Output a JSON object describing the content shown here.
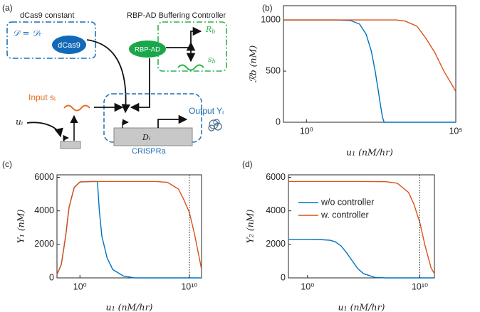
{
  "diagram": {
    "panel_label": "(a)",
    "dcas9_title": "dCas9 constant",
    "dcas9_eq": "𝒟 = 𝒟ₜ",
    "dcas9": "dCas9",
    "controller_title": "RBP-AD Buffering Controller",
    "rbp_ad": "RBP-AD",
    "rb": {
      "main": "R",
      "sub": "b"
    },
    "sb": {
      "main": "s",
      "sub": "b"
    },
    "input": "Input sᵢ",
    "u": "uᵢ",
    "gene": "Dᵢ",
    "output": "Output Yᵢ",
    "crispra": "CRISPRa"
  },
  "chart_data": [
    {
      "type": "line",
      "panel_label": "(b)",
      "xlabel": "u₁ (nM/hr)",
      "ylabel": "ℛb (nM)",
      "xscale": "log",
      "xlim": [
        0.17,
        100000
      ],
      "ylim": [
        0,
        1140
      ],
      "xticks": [
        {
          "value": 1,
          "label": "10⁰"
        },
        {
          "value": 100000,
          "label": "10⁵"
        }
      ],
      "yticks": [
        0,
        500,
        1000
      ],
      "series": [
        {
          "color": "#0072BD",
          "x": [
            0.17,
            1,
            10,
            30,
            60,
            100,
            150,
            200,
            250,
            300,
            350,
            400,
            1000,
            100000
          ],
          "values": [
            1000,
            1000,
            1000,
            995,
            960,
            860,
            690,
            500,
            320,
            170,
            50,
            0,
            0,
            0
          ]
        },
        {
          "color": "#D95319",
          "x": [
            0.17,
            1,
            100,
            1000,
            2000,
            5000,
            10000,
            20000,
            40000,
            70000,
            100000
          ],
          "values": [
            1000,
            1000,
            1000,
            1000,
            990,
            940,
            820,
            680,
            500,
            380,
            300
          ]
        }
      ]
    },
    {
      "type": "line",
      "panel_label": "(c)",
      "xlabel": "u₁ (nM/hr)",
      "ylabel": "Y₁ (nM)",
      "xscale": "log",
      "xlim": [
        0.008,
        130000000000
      ],
      "ylim": [
        0,
        6150
      ],
      "xticks": [
        {
          "value": 1,
          "label": "10⁰"
        },
        {
          "value": 10000000000,
          "label": "10¹⁰"
        }
      ],
      "yticks": [
        0,
        2000,
        4000,
        6000
      ],
      "vline": 10000000000,
      "series": [
        {
          "color": "#0072BD",
          "x": [
            0.008,
            0.02,
            0.05,
            0.1,
            0.3,
            1,
            10,
            40,
            60,
            100,
            300,
            1000,
            10000,
            100000,
            130000000000
          ],
          "values": [
            200,
            800,
            2500,
            4200,
            5400,
            5720,
            5750,
            5750,
            4000,
            2500,
            1200,
            500,
            100,
            0,
            0
          ]
        },
        {
          "color": "#D95319",
          "x": [
            0.008,
            0.02,
            0.05,
            0.1,
            0.3,
            1,
            10,
            10000,
            10000000,
            100000000,
            1000000000,
            3000000000,
            10000000000,
            30000000000,
            100000000000,
            130000000000
          ],
          "values": [
            200,
            800,
            2500,
            4200,
            5400,
            5720,
            5750,
            5750,
            5750,
            5700,
            5300,
            4700,
            3900,
            2600,
            900,
            500
          ]
        }
      ]
    },
    {
      "type": "line",
      "panel_label": "(d)",
      "xlabel": "u₁ (nM/hr)",
      "ylabel": "Y₂ (nM)",
      "xscale": "log",
      "xlim": [
        0.02,
        200000000000
      ],
      "ylim": [
        0,
        6150
      ],
      "xticks": [
        {
          "value": 1,
          "label": "10⁰"
        },
        {
          "value": 10000000000,
          "label": "10¹⁰"
        }
      ],
      "yticks": [
        0,
        2000,
        4000,
        6000
      ],
      "vline": 10000000000,
      "legend": "upper left",
      "series": [
        {
          "name": "w/o controller",
          "color": "#0072BD",
          "x": [
            0.02,
            1,
            10,
            100,
            300,
            1000,
            3000,
            10000,
            30000,
            100000,
            1000000,
            10000000,
            200000000000
          ],
          "values": [
            2300,
            2300,
            2290,
            2250,
            2150,
            1900,
            1500,
            1000,
            550,
            250,
            30,
            0,
            0
          ]
        },
        {
          "name": "w. controller",
          "color": "#D95319",
          "x": [
            0.02,
            1,
            100000,
            10000000,
            100000000,
            1000000000,
            3000000000,
            10000000000,
            30000000000,
            100000000000,
            200000000000
          ],
          "values": [
            5750,
            5750,
            5750,
            5740,
            5650,
            5100,
            4400,
            3300,
            1900,
            600,
            250
          ]
        }
      ]
    }
  ]
}
